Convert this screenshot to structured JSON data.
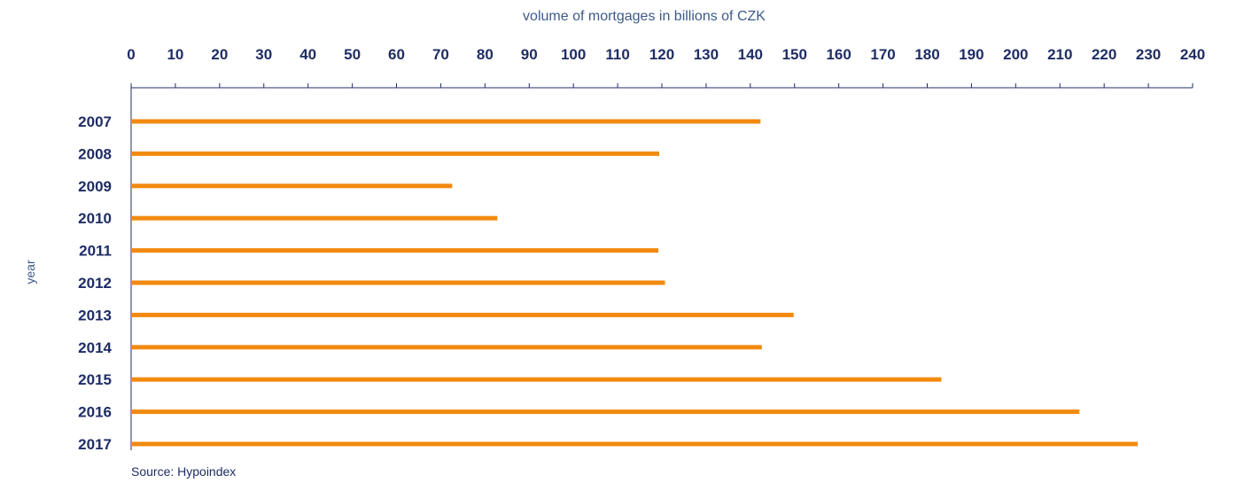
{
  "chart_data": {
    "type": "bar",
    "orientation": "horizontal",
    "xlabel": "volume of mortgages in billions of CZK",
    "ylabel": "year",
    "source": "Source: Hypoindex",
    "categories": [
      "2007",
      "2008",
      "2009",
      "2010",
      "2011",
      "2012",
      "2013",
      "2014",
      "2015",
      "2016",
      "2017"
    ],
    "values": [
      142.3,
      119.4,
      72.6,
      82.8,
      119.2,
      120.7,
      149.8,
      142.6,
      183.2,
      214.4,
      227.6
    ],
    "xlim": [
      0,
      240
    ],
    "xticks": [
      0,
      10,
      20,
      30,
      40,
      50,
      60,
      70,
      80,
      90,
      100,
      110,
      120,
      130,
      140,
      150,
      160,
      170,
      180,
      190,
      200,
      210,
      220,
      230,
      240
    ],
    "x_axis_position": "top",
    "grid": false,
    "legend": "none"
  },
  "colors": {
    "bar": "#F28A0F",
    "axis_text": "#1F2D64",
    "label_text": "#3D5A8A",
    "axis_line": "#1F2D64",
    "source_text": "#1F2D64"
  }
}
